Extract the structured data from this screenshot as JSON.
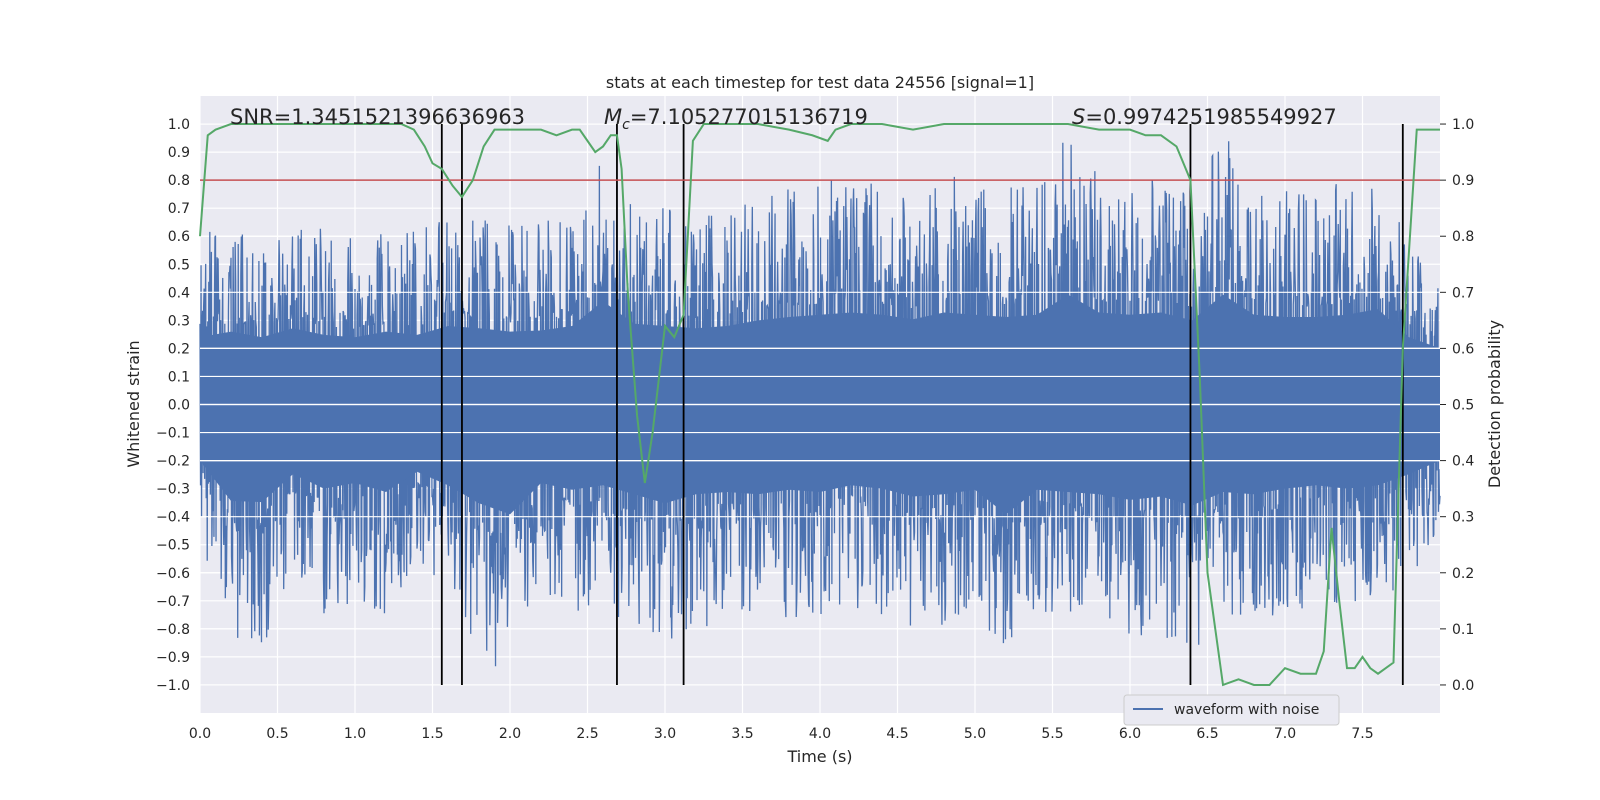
{
  "chart_data": {
    "type": "line",
    "title": "stats at each timestep for test data 24556 [signal=1]",
    "xlabel": "Time (s)",
    "ylabel": "Whitened strain",
    "y2label": "Detection probability",
    "xlim": [
      0.0,
      8.0
    ],
    "ylim": [
      -1.1,
      1.1
    ],
    "y2lim": [
      -0.05,
      1.05
    ],
    "xticks": [
      "0.0",
      "0.5",
      "1.0",
      "1.5",
      "2.0",
      "2.5",
      "3.0",
      "3.5",
      "4.0",
      "4.5",
      "5.0",
      "5.5",
      "6.0",
      "6.5",
      "7.0",
      "7.5"
    ],
    "xtick_values": [
      0.0,
      0.5,
      1.0,
      1.5,
      2.0,
      2.5,
      3.0,
      3.5,
      4.0,
      4.5,
      5.0,
      5.5,
      6.0,
      6.5,
      7.0,
      7.5
    ],
    "yticks": [
      "1.0",
      "0.9",
      "0.8",
      "0.7",
      "0.6",
      "0.5",
      "0.4",
      "0.3",
      "0.2",
      "0.1",
      "0.0",
      "−0.1",
      "−0.2",
      "−0.3",
      "−0.4",
      "−0.5",
      "−0.6",
      "−0.7",
      "−0.8",
      "−0.9",
      "−1.0"
    ],
    "ytick_values": [
      1.0,
      0.9,
      0.8,
      0.7,
      0.6,
      0.5,
      0.4,
      0.3,
      0.2,
      0.1,
      0.0,
      -0.1,
      -0.2,
      -0.3,
      -0.4,
      -0.5,
      -0.6,
      -0.7,
      -0.8,
      -0.9,
      -1.0
    ],
    "y2ticks": [
      "1.0",
      "0.9",
      "0.8",
      "0.7",
      "0.6",
      "0.5",
      "0.4",
      "0.3",
      "0.2",
      "0.1",
      "0.0"
    ],
    "y2tick_values": [
      1.0,
      0.9,
      0.8,
      0.7,
      0.6,
      0.5,
      0.4,
      0.3,
      0.2,
      0.1,
      0.0
    ],
    "annotations": {
      "snr": "SNR=1.3451521396636963",
      "mc_symbol": "M",
      "mc_subscript": "c",
      "mc_value": "=7.105277015136719",
      "s_symbol": "S",
      "s_value": "=0.9974251985549927"
    },
    "legend": {
      "label": "waveform with noise",
      "placement": "lower-right"
    },
    "threshold_y2": 0.9,
    "vertical_lines_x": [
      1.56,
      1.69,
      2.69,
      3.12,
      6.39,
      7.76
    ],
    "series": [
      {
        "name": "waveform with noise",
        "description_color": "#4c72b0",
        "envelope": {
          "x": [
            0.0,
            0.2,
            0.4,
            0.6,
            0.8,
            1.0,
            1.2,
            1.4,
            1.6,
            1.8,
            2.0,
            2.2,
            2.4,
            2.6,
            2.8,
            3.0,
            3.2,
            3.4,
            3.6,
            3.8,
            4.0,
            4.2,
            4.4,
            4.6,
            4.8,
            5.0,
            5.2,
            5.4,
            5.6,
            5.8,
            6.0,
            6.2,
            6.4,
            6.6,
            6.8,
            7.0,
            7.2,
            7.4,
            7.6,
            7.8,
            8.0
          ],
          "max": [
            0.6,
            0.65,
            0.6,
            0.68,
            0.62,
            0.6,
            0.65,
            0.62,
            0.7,
            0.68,
            0.65,
            0.66,
            0.7,
            0.92,
            0.72,
            0.7,
            0.68,
            0.7,
            0.75,
            0.78,
            0.8,
            0.82,
            0.8,
            0.76,
            0.82,
            0.8,
            0.78,
            0.8,
            0.98,
            0.82,
            0.8,
            0.82,
            0.75,
            0.98,
            0.8,
            0.78,
            0.78,
            0.8,
            0.85,
            0.6,
            0.5
          ],
          "min": [
            -0.5,
            -0.86,
            -0.87,
            -0.62,
            -0.75,
            -0.7,
            -0.78,
            -0.6,
            -0.72,
            -0.88,
            -0.98,
            -0.7,
            -0.76,
            -0.72,
            -0.8,
            -0.88,
            -0.8,
            -0.78,
            -0.8,
            -0.76,
            -0.78,
            -0.72,
            -0.75,
            -0.82,
            -0.8,
            -0.76,
            -0.98,
            -0.76,
            -0.78,
            -0.8,
            -0.85,
            -0.82,
            -0.9,
            -0.78,
            -0.8,
            -0.75,
            -0.72,
            -0.75,
            -0.72,
            -0.62,
            -0.5
          ]
        }
      },
      {
        "name": "detection probability",
        "description_color": "#55a868",
        "x": [
          0.0,
          0.05,
          0.1,
          0.2,
          0.4,
          0.6,
          0.8,
          1.0,
          1.2,
          1.3,
          1.38,
          1.45,
          1.5,
          1.56,
          1.63,
          1.69,
          1.76,
          1.83,
          1.9,
          2.0,
          2.1,
          2.2,
          2.3,
          2.4,
          2.45,
          2.5,
          2.55,
          2.6,
          2.65,
          2.69,
          2.72,
          2.76,
          2.82,
          2.87,
          2.92,
          3.0,
          3.06,
          3.12,
          3.18,
          3.25,
          3.4,
          3.6,
          3.8,
          3.95,
          4.05,
          4.1,
          4.2,
          4.4,
          4.6,
          4.8,
          5.0,
          5.2,
          5.4,
          5.6,
          5.8,
          6.0,
          6.1,
          6.2,
          6.3,
          6.39,
          6.45,
          6.5,
          6.55,
          6.6,
          6.7,
          6.8,
          6.9,
          7.0,
          7.1,
          7.2,
          7.25,
          7.3,
          7.35,
          7.4,
          7.45,
          7.5,
          7.55,
          7.6,
          7.7,
          7.76,
          7.85,
          8.0
        ],
        "values": [
          0.8,
          0.98,
          0.99,
          1.0,
          1.0,
          1.0,
          1.0,
          1.0,
          1.0,
          1.0,
          0.99,
          0.96,
          0.93,
          0.92,
          0.89,
          0.87,
          0.9,
          0.96,
          0.99,
          0.99,
          0.99,
          0.99,
          0.98,
          0.99,
          0.99,
          0.97,
          0.95,
          0.96,
          0.98,
          0.98,
          0.92,
          0.7,
          0.48,
          0.36,
          0.45,
          0.64,
          0.62,
          0.66,
          0.97,
          1.0,
          1.0,
          1.0,
          0.99,
          0.98,
          0.97,
          0.99,
          1.0,
          1.0,
          0.99,
          1.0,
          1.0,
          1.0,
          1.0,
          1.0,
          0.99,
          0.99,
          0.98,
          0.98,
          0.96,
          0.9,
          0.55,
          0.2,
          0.1,
          0.0,
          0.01,
          0.0,
          0.0,
          0.03,
          0.02,
          0.02,
          0.06,
          0.28,
          0.15,
          0.03,
          0.03,
          0.05,
          0.03,
          0.02,
          0.04,
          0.6,
          0.99,
          0.99
        ]
      },
      {
        "name": "threshold",
        "description_color": "#c44e52",
        "value_y2": 0.9
      }
    ]
  }
}
